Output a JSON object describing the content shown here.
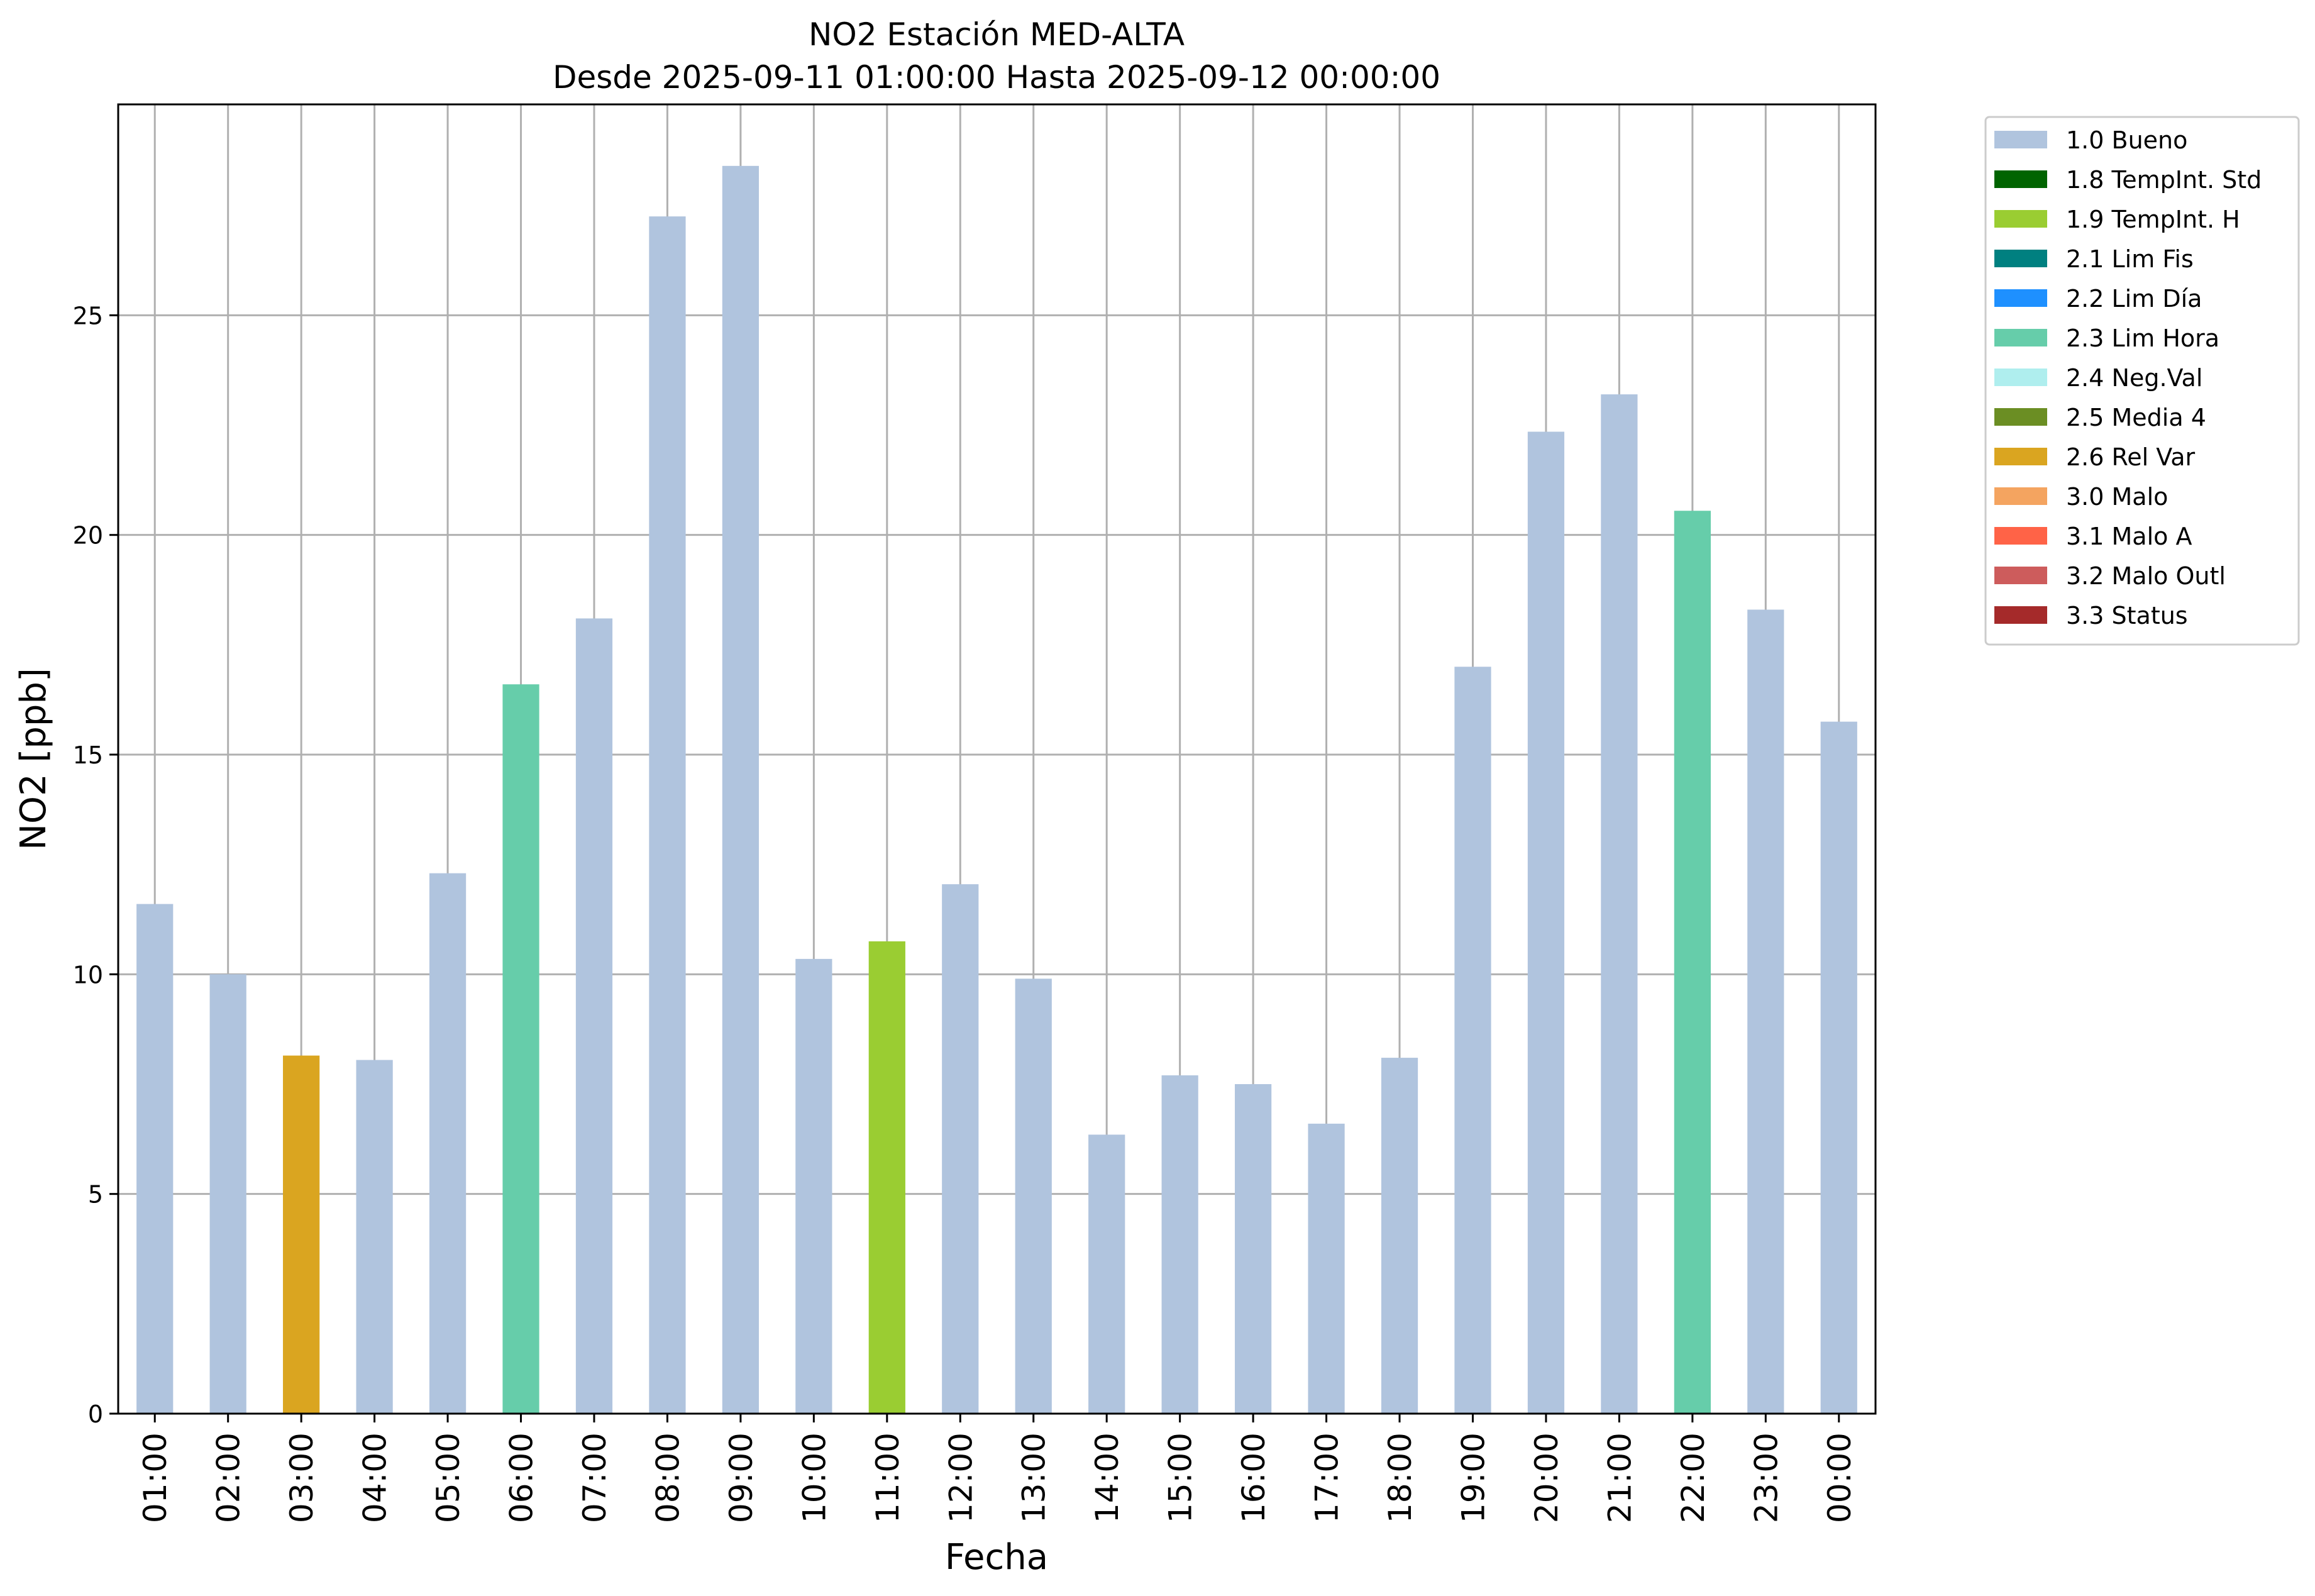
{
  "chart_data": {
    "type": "bar",
    "title_line1": "NO2 Estación MED-ALTA",
    "title_line2": "Desde 2025-09-11 01:00:00 Hasta 2025-09-12 00:00:00",
    "xlabel": "Fecha",
    "ylabel": "NO2 [ppb]",
    "ylim": [
      0,
      29.8
    ],
    "yticks": [
      0,
      5,
      10,
      15,
      20,
      25
    ],
    "grid": true,
    "legend_position": "outside-top-right",
    "categories": [
      "01:00",
      "02:00",
      "03:00",
      "04:00",
      "05:00",
      "06:00",
      "07:00",
      "08:00",
      "09:00",
      "10:00",
      "11:00",
      "12:00",
      "13:00",
      "14:00",
      "15:00",
      "16:00",
      "17:00",
      "18:00",
      "19:00",
      "20:00",
      "21:00",
      "22:00",
      "23:00",
      "00:00"
    ],
    "values": [
      11.6,
      10.0,
      8.15,
      8.05,
      12.3,
      16.6,
      18.1,
      27.25,
      28.4,
      10.35,
      10.75,
      12.05,
      9.9,
      6.35,
      7.7,
      7.5,
      6.6,
      8.1,
      17.0,
      22.35,
      23.2,
      20.55,
      18.3,
      15.75
    ],
    "flags": [
      "1.0 Bueno",
      "1.0 Bueno",
      "2.6 Rel Var",
      "1.0 Bueno",
      "1.0 Bueno",
      "2.3 Lim Hora",
      "1.0 Bueno",
      "1.0 Bueno",
      "1.0 Bueno",
      "1.0 Bueno",
      "1.9 TempInt. H",
      "1.0 Bueno",
      "1.0 Bueno",
      "1.0 Bueno",
      "1.0 Bueno",
      "1.0 Bueno",
      "1.0 Bueno",
      "1.0 Bueno",
      "1.0 Bueno",
      "1.0 Bueno",
      "1.0 Bueno",
      "2.3 Lim Hora",
      "1.0 Bueno",
      "1.0 Bueno"
    ],
    "legend": [
      {
        "label": "1.0 Bueno",
        "color": "#b0c4de"
      },
      {
        "label": "1.8 TempInt. Std",
        "color": "#006400"
      },
      {
        "label": "1.9 TempInt. H",
        "color": "#9acd32"
      },
      {
        "label": "2.1 Lim Fis",
        "color": "#008080"
      },
      {
        "label": "2.2 Lim Día",
        "color": "#1e90ff"
      },
      {
        "label": "2.3 Lim Hora",
        "color": "#66cdaa"
      },
      {
        "label": "2.4 Neg.Val",
        "color": "#afeeee"
      },
      {
        "label": "2.5 Media 4",
        "color": "#6b8e23"
      },
      {
        "label": "2.6 Rel Var",
        "color": "#daa520"
      },
      {
        "label": "3.0 Malo",
        "color": "#f4a460"
      },
      {
        "label": "3.1 Malo A",
        "color": "#ff6347"
      },
      {
        "label": "3.2 Malo Outl",
        "color": "#cd5c5c"
      },
      {
        "label": "3.3 Status",
        "color": "#a52a2a"
      }
    ]
  }
}
